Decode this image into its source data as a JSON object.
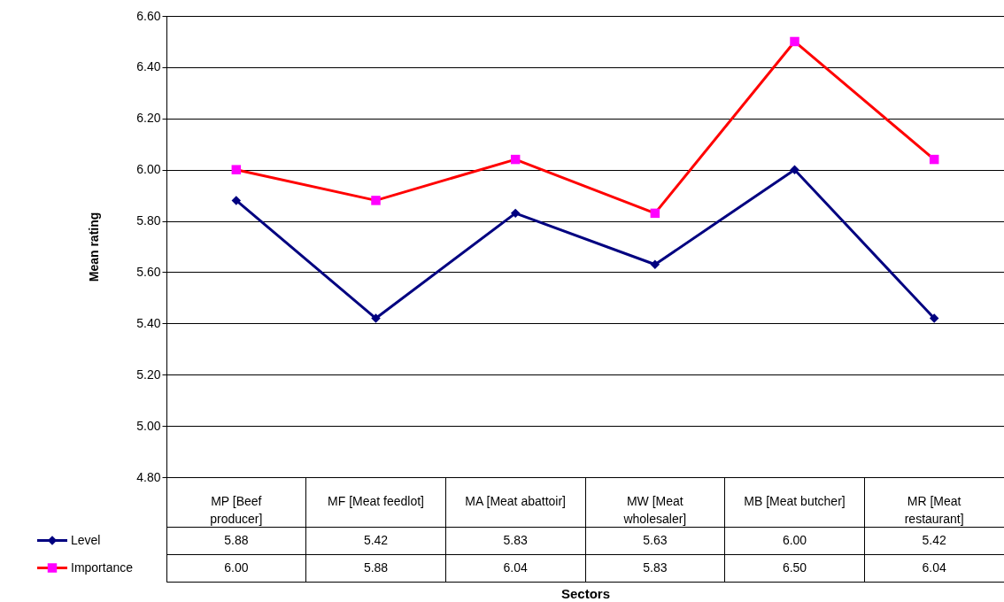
{
  "chart_data": {
    "type": "line",
    "xlabel": "Sectors",
    "ylabel": "Mean rating",
    "categories": [
      "MP [Beef producer]",
      "MF [Meat feedlot]",
      "MA [Meat abattoir]",
      "MW [Meat wholesaler]",
      "MB [Meat butcher]",
      "MR  [Meat restaurant]"
    ],
    "series": [
      {
        "name": "Level",
        "color": "#000080",
        "colors": [
          "#000080",
          "#000080",
          "#000080",
          "#000080",
          "#000080",
          "#000080"
        ],
        "marker": "diamond",
        "values": [
          5.88,
          5.42,
          5.83,
          5.63,
          6.0,
          5.42
        ],
        "value_labels": [
          "5.88",
          "5.42",
          "5.83",
          "5.63",
          "6.00",
          "5.42"
        ]
      },
      {
        "name": "Importance",
        "color": "#ff0000",
        "colors": [
          "#ff00ff",
          "#ff00ff",
          "#ff00ff",
          "#ff00ff",
          "#ff00ff",
          "#ff00ff"
        ],
        "marker": "square",
        "values": [
          6.0,
          5.88,
          6.04,
          5.83,
          6.5,
          6.04
        ],
        "value_labels": [
          "6.00",
          "5.88",
          "6.04",
          "5.83",
          "6.50",
          "6.04"
        ]
      }
    ],
    "ylim": [
      4.8,
      6.6
    ],
    "yticks": [
      {
        "value": 4.8,
        "label": "4.80"
      },
      {
        "value": 5.0,
        "label": "5.00"
      },
      {
        "value": 5.2,
        "label": "5.20"
      },
      {
        "value": 5.4,
        "label": "5.40"
      },
      {
        "value": 5.6,
        "label": "5.60"
      },
      {
        "value": 5.8,
        "label": "5.80"
      },
      {
        "value": 6.0,
        "label": "6.00"
      },
      {
        "value": 6.2,
        "label": "6.20"
      },
      {
        "value": 6.4,
        "label": "6.40"
      },
      {
        "value": 6.6,
        "label": "6.60"
      }
    ],
    "grid": "y",
    "legend": "bottom left"
  }
}
